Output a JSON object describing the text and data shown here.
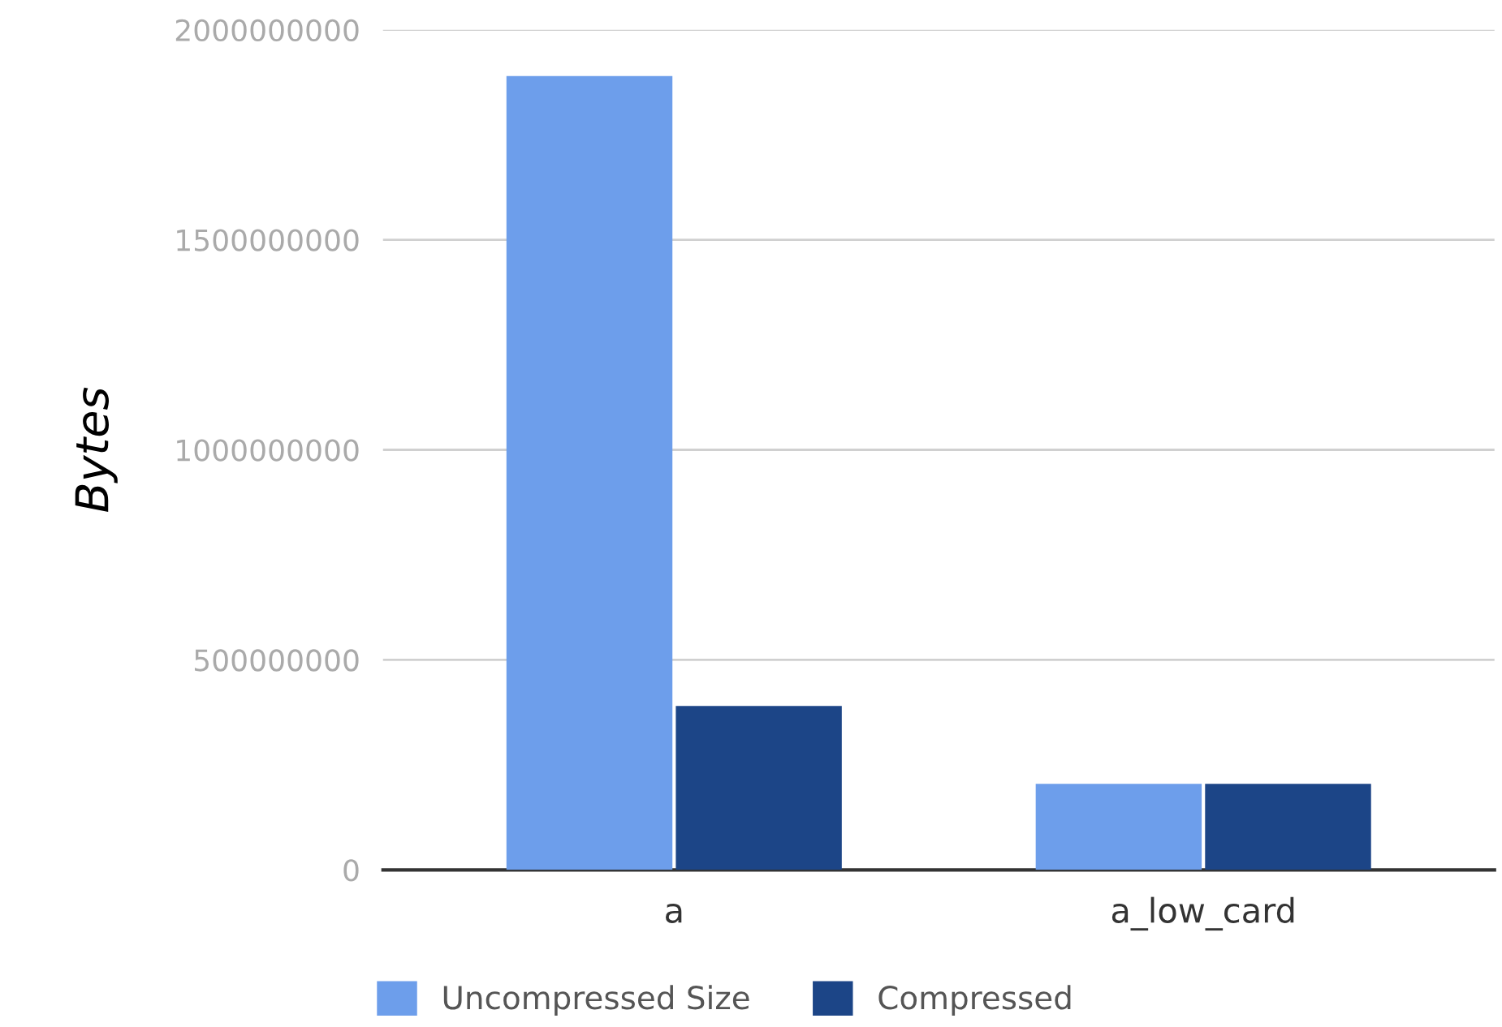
{
  "chart_data": {
    "type": "bar",
    "ylabel": "Bytes",
    "categories": [
      "a",
      "a_low_card"
    ],
    "series": [
      {
        "name": "Uncompressed Size",
        "color": "#6d9eeb",
        "values": [
          1890000000,
          205000000
        ]
      },
      {
        "name": "Compressed",
        "color": "#1c4587",
        "values": [
          390000000,
          205000000
        ]
      }
    ],
    "ylim": [
      0,
      2000000000
    ],
    "yticks": [
      0,
      500000000,
      1000000000,
      1500000000,
      2000000000
    ],
    "grid": "y",
    "legend": "bottom"
  }
}
